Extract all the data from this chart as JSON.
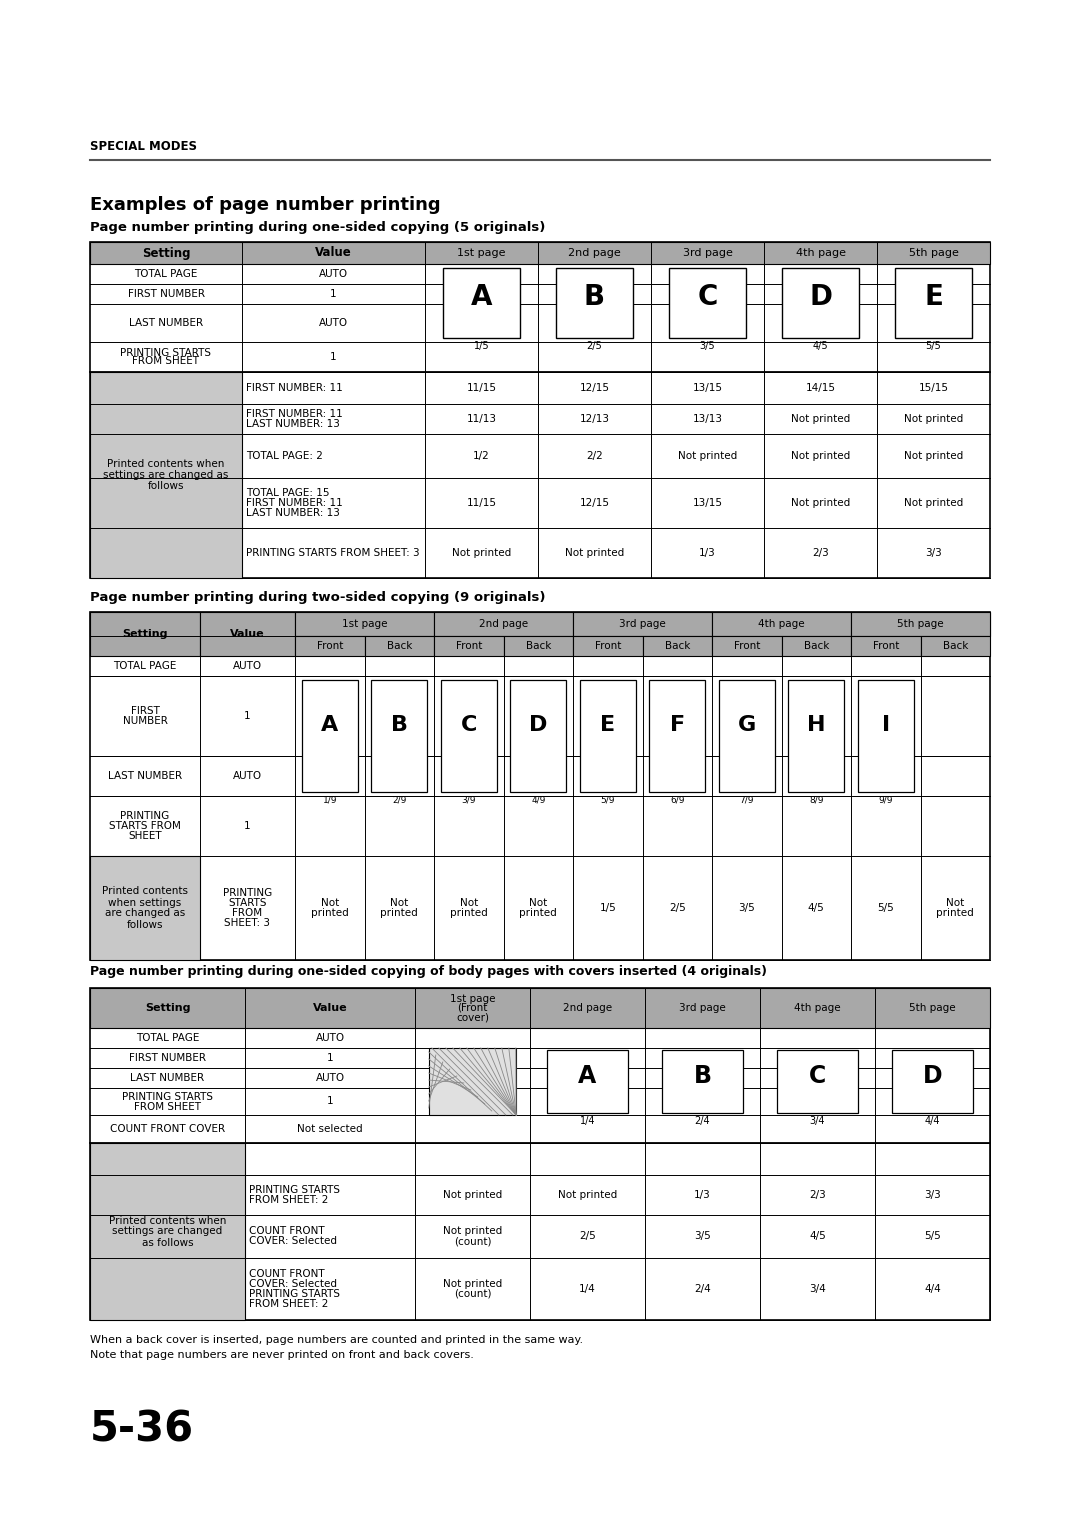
{
  "bg_color": "#ffffff",
  "hdr_color": "#a8a8a8",
  "gray_color": "#c8c8c8",
  "page_label": "SPECIAL MODES",
  "main_title": "Examples of page number printing",
  "s1_title": "Page number printing during one-sided copying (5 originals)",
  "s2_title": "Page number printing during two-sided copying (9 originals)",
  "s3_title": "Page number printing during one-sided copying of body pages with covers inserted (4 originals)",
  "footer1": "When a back cover is inserted, page numbers are counted and printed in the same way.",
  "footer2": "Note that page numbers are never printed on front and back covers.",
  "page_num": "5-36",
  "t1_letters": [
    "A",
    "B",
    "C",
    "D",
    "E"
  ],
  "t1_pgnums": [
    "1/5",
    "2/5",
    "3/5",
    "4/5",
    "5/5"
  ],
  "t2_letters": [
    "A",
    "B",
    "C",
    "D",
    "E",
    "F",
    "G",
    "H",
    "I"
  ],
  "t2_pgnums": [
    "1/9",
    "2/9",
    "3/9",
    "4/9",
    "5/9",
    "6/9",
    "7/9",
    "8/9",
    "9/9"
  ],
  "t3_letters": [
    "A",
    "B",
    "C",
    "D"
  ],
  "t3_pgnums": [
    "1/4",
    "2/4",
    "3/4",
    "4/4"
  ]
}
